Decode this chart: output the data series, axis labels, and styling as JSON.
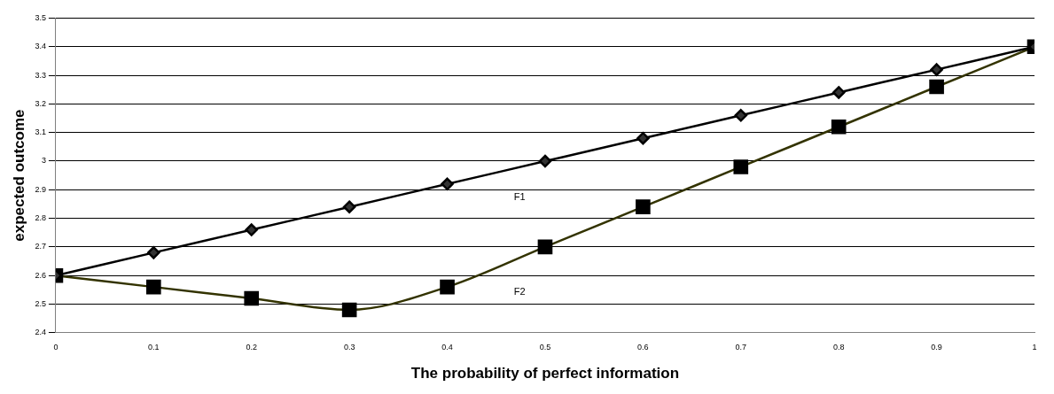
{
  "chart_data": {
    "type": "line",
    "xlabel": "The probability of perfect information",
    "ylabel": "expected outcome",
    "x": [
      0,
      0.1,
      0.2,
      0.3,
      0.4,
      0.5,
      0.6,
      0.7,
      0.8,
      0.9,
      1
    ],
    "series": [
      {
        "name": "F1",
        "color": "#000000",
        "marker": "diamond",
        "values": [
          2.6,
          2.68,
          2.76,
          2.84,
          2.92,
          3.0,
          3.08,
          3.16,
          3.24,
          3.32,
          3.4
        ]
      },
      {
        "name": "F2",
        "color": "#333300",
        "marker": "square",
        "values": [
          2.6,
          2.56,
          2.52,
          2.48,
          2.56,
          2.7,
          2.84,
          2.98,
          3.12,
          3.26,
          3.4
        ]
      }
    ],
    "xlim": [
      0,
      1
    ],
    "xticks": [
      0,
      0.1,
      0.2,
      0.3,
      0.4,
      0.5,
      0.6,
      0.7,
      0.8,
      0.9,
      1
    ],
    "ylim": [
      2.4,
      3.5
    ],
    "yticks": [
      2.4,
      2.5,
      2.6,
      2.7,
      2.8,
      2.9,
      3,
      3.1,
      3.2,
      3.3,
      3.4,
      3.5
    ],
    "grid": "y",
    "legend": false,
    "line_style": "solid"
  }
}
